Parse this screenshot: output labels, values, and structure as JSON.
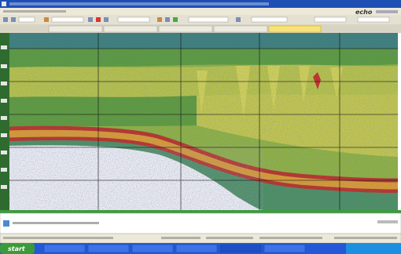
{
  "app": {
    "logo": "echo",
    "start_button": "start"
  }
}
